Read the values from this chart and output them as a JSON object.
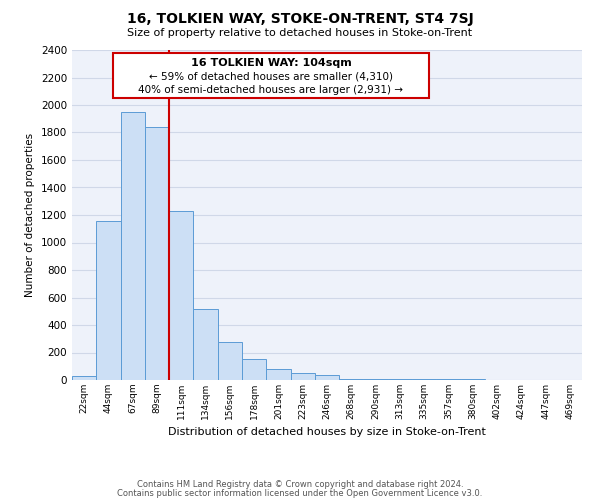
{
  "title": "16, TOLKIEN WAY, STOKE-ON-TRENT, ST4 7SJ",
  "subtitle": "Size of property relative to detached houses in Stoke-on-Trent",
  "xlabel": "Distribution of detached houses by size in Stoke-on-Trent",
  "ylabel": "Number of detached properties",
  "bin_labels": [
    "22sqm",
    "44sqm",
    "67sqm",
    "89sqm",
    "111sqm",
    "134sqm",
    "156sqm",
    "178sqm",
    "201sqm",
    "223sqm",
    "246sqm",
    "268sqm",
    "290sqm",
    "313sqm",
    "335sqm",
    "357sqm",
    "380sqm",
    "402sqm",
    "424sqm",
    "447sqm",
    "469sqm"
  ],
  "bar_values": [
    30,
    1160,
    1950,
    1840,
    1230,
    520,
    275,
    155,
    80,
    50,
    40,
    10,
    10,
    5,
    5,
    5,
    5,
    3,
    3,
    2,
    2
  ],
  "bar_color": "#ccdff5",
  "bar_edge_color": "#5b9bd5",
  "grid_color": "#d0d8e8",
  "vline_position": 3.5,
  "vline_color": "#cc0000",
  "annotation_title": "16 TOLKIEN WAY: 104sqm",
  "annotation_line1": "← 59% of detached houses are smaller (4,310)",
  "annotation_line2": "40% of semi-detached houses are larger (2,931) →",
  "annotation_box_edge": "#cc0000",
  "ylim": [
    0,
    2400
  ],
  "yticks": [
    0,
    200,
    400,
    600,
    800,
    1000,
    1200,
    1400,
    1600,
    1800,
    2000,
    2200,
    2400
  ],
  "footer1": "Contains HM Land Registry data © Crown copyright and database right 2024.",
  "footer2": "Contains public sector information licensed under the Open Government Licence v3.0.",
  "bg_color": "#ffffff",
  "plot_bg_color": "#eef2fa"
}
